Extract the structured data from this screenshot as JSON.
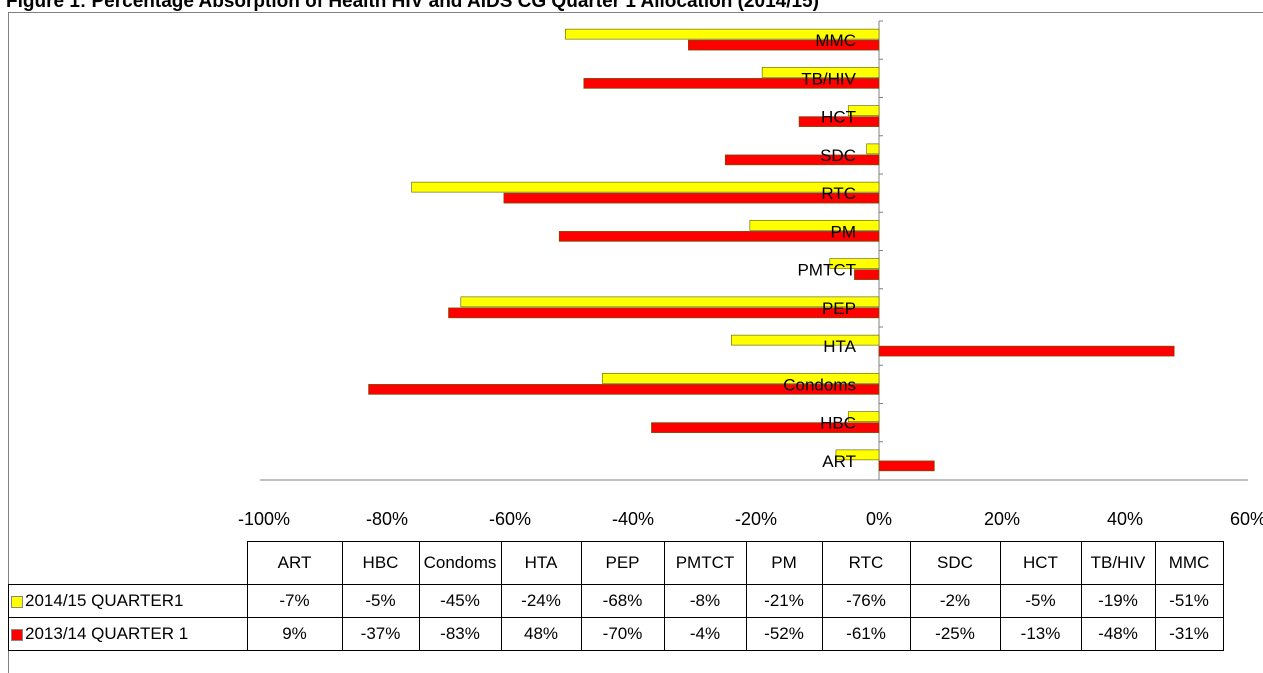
{
  "title": "Figure 1: Percentage Absorption of Health HIV and AIDS CG Quarter 1 Allocation (2014/15)",
  "chart_data": {
    "type": "bar",
    "orientation": "horizontal",
    "categories": [
      "ART",
      "HBC",
      "Condoms",
      "HTA",
      "PEP",
      "PMTCT",
      "PM",
      "RTC",
      "SDC",
      "HCT",
      "TB/HIV",
      "MMC"
    ],
    "table_headers": [
      "ART",
      "HBC",
      "Condoms",
      "HTA",
      "PEP",
      "PMTCT",
      "PM",
      "RTC",
      "SDC",
      "HCT",
      "TB/HIV",
      "MMC"
    ],
    "series": [
      {
        "name": "2014/15  QUARTER1",
        "color": "#ffff00",
        "values": [
          -7,
          -5,
          -45,
          -24,
          -68,
          -8,
          -21,
          -76,
          -2,
          -5,
          -19,
          -51
        ],
        "labels": [
          "-7%",
          "-5%",
          "-45%",
          "-24%",
          "-68%",
          "-8%",
          "-21%",
          "-76%",
          "-2%",
          "-5%",
          "-19%",
          "-51%"
        ]
      },
      {
        "name": "2013/14 QUARTER 1",
        "color": "#ff0000",
        "values": [
          9,
          -37,
          -83,
          48,
          -70,
          -4,
          -52,
          -61,
          -25,
          -13,
          -48,
          -31
        ],
        "labels": [
          "9%",
          "-37%",
          "-83%",
          "48%",
          "-70%",
          "-4%",
          "-52%",
          "-61%",
          "-25%",
          "-13%",
          "-48%",
          "-31%"
        ]
      }
    ],
    "xlim": [
      -100,
      60
    ],
    "x_ticks": [
      -100,
      -80,
      -60,
      -40,
      -20,
      0,
      20,
      40,
      60
    ],
    "x_tick_labels": [
      "-100%",
      "-80%",
      "-60%",
      "-40%",
      "-20%",
      "0%",
      "20%",
      "40%",
      "60%"
    ],
    "grid": false,
    "legend": "data-table"
  }
}
